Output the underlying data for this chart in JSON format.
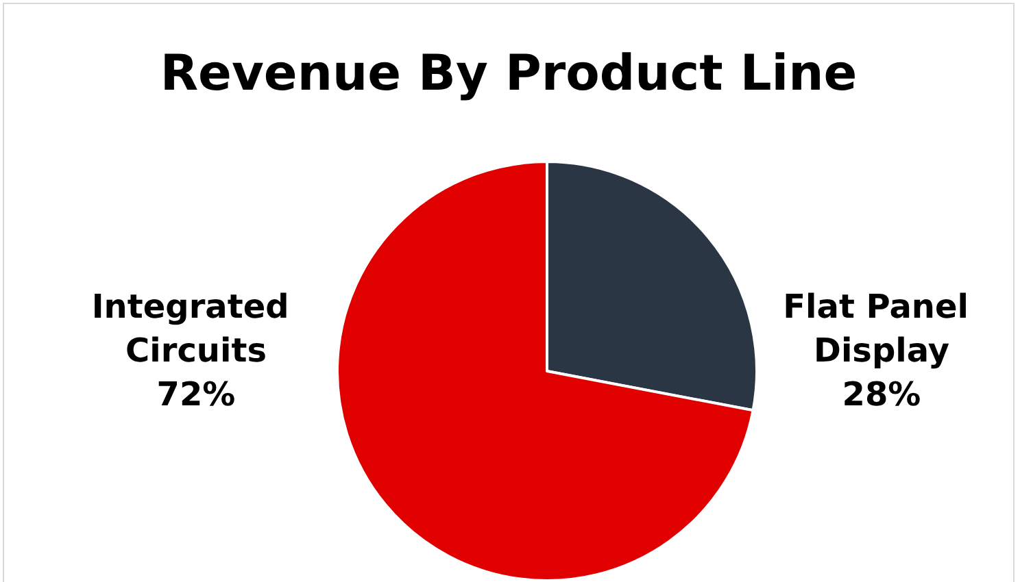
{
  "chart_data": {
    "type": "pie",
    "title": "Revenue By Product Line",
    "categories": [
      "Flat Panel Display",
      "Integrated Circuits"
    ],
    "values": [
      28,
      72
    ],
    "colors": [
      "#2b3645",
      "#e00000"
    ],
    "value_labels": [
      "28%",
      "72%"
    ],
    "legend": false
  }
}
